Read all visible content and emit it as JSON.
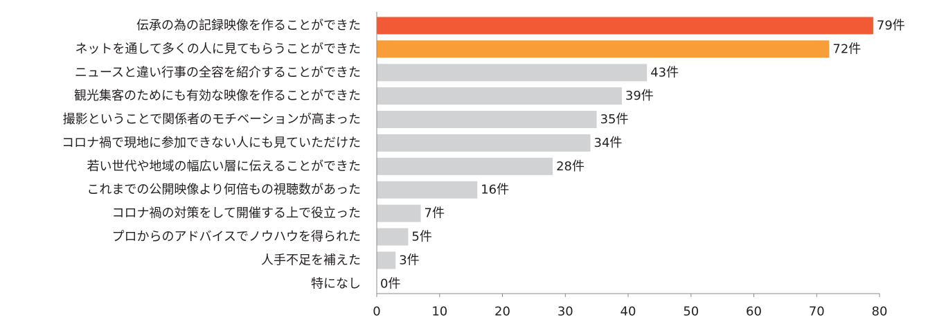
{
  "chart_data": {
    "type": "bar",
    "orientation": "horizontal",
    "categories": [
      "伝承の為の記録映像を作ることができた",
      "ネットを通して多くの人に見てもらうことができた",
      "ニュースと違い行事の全容を紹介することができた",
      "観光集客のためにも有効な映像を作ることができた",
      "撮影ということで関係者のモチベーションが高まった",
      "コロナ禍で現地に参加できない人にも見ていただけた",
      "若い世代や地域の幅広い層に伝えることができた",
      "これまでの公開映像より何倍もの視聴数があった",
      "コロナ禍の対策をして開催する上で役立った",
      "プロからのアドバイスでノウハウを得られた",
      "人手不足を補えた",
      "特になし"
    ],
    "values": [
      79,
      72,
      43,
      39,
      35,
      34,
      28,
      16,
      7,
      5,
      3,
      0
    ],
    "value_labels": [
      "79件",
      "72件",
      "43件",
      "39件",
      "35件",
      "34件",
      "28件",
      "16件",
      "7件",
      "5件",
      "3件",
      "0件"
    ],
    "bar_colors": [
      "#f15a35",
      "#f99d38",
      "#d1d2d4",
      "#d1d2d4",
      "#d1d2d4",
      "#d1d2d4",
      "#d1d2d4",
      "#d1d2d4",
      "#d1d2d4",
      "#d1d2d4",
      "#d1d2d4",
      "#d1d2d4"
    ],
    "xlim": [
      0,
      80
    ],
    "xticks": [
      0,
      10,
      20,
      30,
      40,
      50,
      60,
      70,
      80
    ],
    "title": "",
    "xlabel": "",
    "ylabel": "",
    "grid": false,
    "legend": "none"
  }
}
